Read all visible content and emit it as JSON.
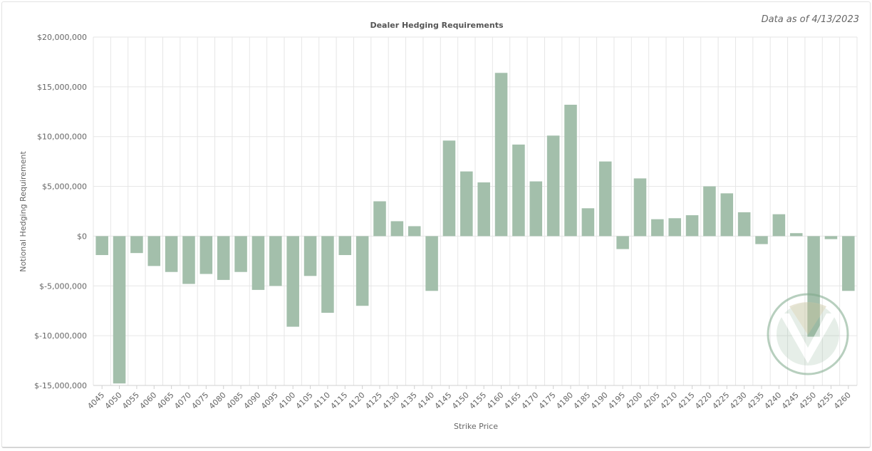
{
  "header": {
    "data_as_of": "Data as of 4/13/2023"
  },
  "colors": {
    "bar": "#a3bfab",
    "grid": "#e6e6e6",
    "axis": "#d0d0d0",
    "watermark": "#7ea88a"
  },
  "watermark": {
    "name": "logo-watermark"
  },
  "chart_data": {
    "type": "bar",
    "title": "Dealer Hedging Requirements",
    "xlabel": "Strike Price",
    "ylabel": "Notional Hedging Requirement",
    "ylim": [
      -15000000,
      20000000
    ],
    "yticks": [
      20000000,
      15000000,
      10000000,
      5000000,
      0,
      -5000000,
      -10000000,
      -15000000
    ],
    "ytick_labels": [
      "$20,000,000",
      "$15,000,000",
      "$10,000,000",
      "$5,000,000",
      "$0",
      "$-5,000,000",
      "$-10,000,000",
      "$-15,000,000"
    ],
    "grid": true,
    "categories": [
      "4045",
      "4050",
      "4055",
      "4060",
      "4065",
      "4070",
      "4075",
      "4080",
      "4085",
      "4090",
      "4095",
      "4100",
      "4105",
      "4110",
      "4115",
      "4120",
      "4125",
      "4130",
      "4135",
      "4140",
      "4145",
      "4150",
      "4155",
      "4160",
      "4165",
      "4170",
      "4175",
      "4180",
      "4185",
      "4190",
      "4195",
      "4200",
      "4205",
      "4210",
      "4215",
      "4220",
      "4225",
      "4230",
      "4235",
      "4240",
      "4245",
      "4250",
      "4255",
      "4260"
    ],
    "values": [
      -1900000,
      -14800000,
      -1700000,
      -3000000,
      -3600000,
      -4800000,
      -3800000,
      -4400000,
      -3600000,
      -5400000,
      -5000000,
      -9100000,
      -4000000,
      -7700000,
      -1900000,
      -7000000,
      3500000,
      1500000,
      1000000,
      -5500000,
      9600000,
      6500000,
      5400000,
      16400000,
      9200000,
      5500000,
      10100000,
      13200000,
      2800000,
      7500000,
      -1300000,
      5800000,
      1700000,
      1800000,
      2100000,
      5000000,
      4300000,
      2400000,
      -800000,
      2200000,
      300000,
      -10100000,
      -300000,
      -5500000
    ]
  }
}
